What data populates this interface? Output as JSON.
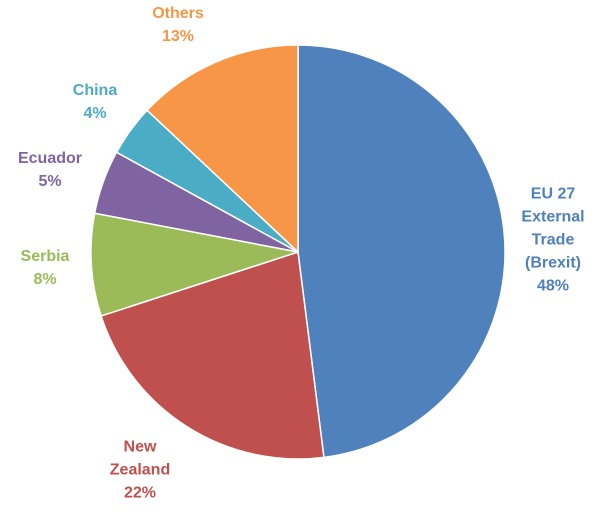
{
  "chart_data": {
    "type": "pie",
    "categories": [
      "EU 27 External Trade (Brexit)",
      "New Zealand",
      "Serbia",
      "Ecuador",
      "China",
      "Others"
    ],
    "values": [
      48,
      22,
      8,
      5,
      4,
      13
    ],
    "value_labels": [
      "48%",
      "22%",
      "8%",
      "5%",
      "4%",
      "13%"
    ],
    "colors": [
      "#4f81bd",
      "#c0504d",
      "#9bbb59",
      "#8064a2",
      "#4bacc6",
      "#f79646"
    ]
  }
}
